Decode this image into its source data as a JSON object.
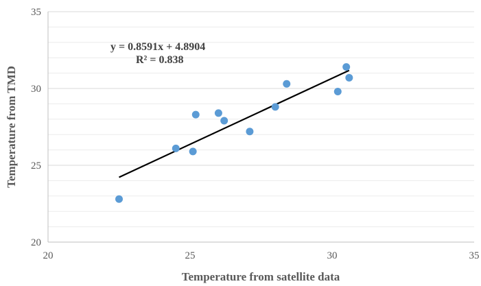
{
  "chart_data": {
    "type": "scatter",
    "xlabel": "Temperature from satellite data",
    "ylabel": "Temperature from TMD",
    "xlim": [
      20,
      35
    ],
    "ylim": [
      20,
      35
    ],
    "x_ticks": [
      "20",
      "25",
      "30",
      "35"
    ],
    "y_ticks": [
      "20",
      "25",
      "30",
      "35"
    ],
    "grid": "horizontal major and minor",
    "colors": {
      "points": "#5b9bd5",
      "trendline": "#000000",
      "grid": "#d9d9d9",
      "axis": "#bfbfbf"
    },
    "points": [
      {
        "x": 22.5,
        "y": 22.8
      },
      {
        "x": 24.5,
        "y": 26.1
      },
      {
        "x": 25.1,
        "y": 25.9
      },
      {
        "x": 25.2,
        "y": 28.3
      },
      {
        "x": 26.0,
        "y": 28.4
      },
      {
        "x": 26.2,
        "y": 27.9
      },
      {
        "x": 27.1,
        "y": 27.2
      },
      {
        "x": 28.0,
        "y": 28.8
      },
      {
        "x": 28.4,
        "y": 30.3
      },
      {
        "x": 30.2,
        "y": 29.8
      },
      {
        "x": 30.5,
        "y": 31.4
      },
      {
        "x": 30.6,
        "y": 30.7
      }
    ],
    "trendline": {
      "slope": 0.8591,
      "intercept": 4.8904,
      "x_range": [
        22.5,
        30.6
      ],
      "equation_label": "y = 0.8591x + 4.8904",
      "r2_label": "R² = 0.838"
    }
  }
}
